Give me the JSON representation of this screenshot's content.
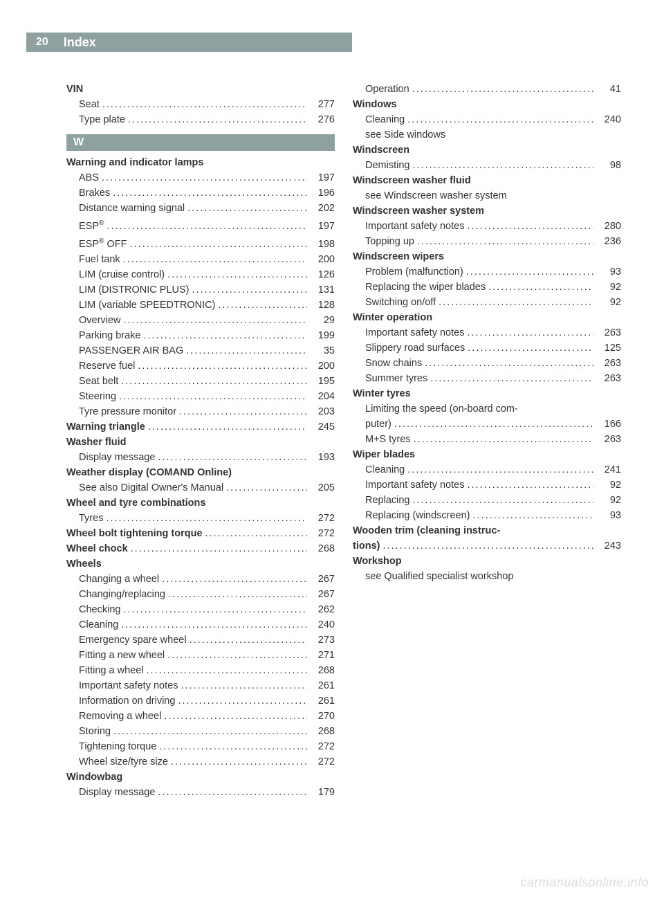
{
  "header": {
    "page_number": "20",
    "title": "Index"
  },
  "watermark": "carmanualsonline.info",
  "section_letter": "W",
  "col1": {
    "vin": {
      "heading": "VIN",
      "seat": {
        "label": "Seat",
        "page": "277"
      },
      "type_plate": {
        "label": "Type plate",
        "page": "276"
      }
    },
    "warning_lamps": {
      "heading": "Warning and indicator lamps",
      "abs": {
        "label": "ABS",
        "page": "197"
      },
      "brakes": {
        "label": "Brakes",
        "page": "196"
      },
      "distance": {
        "label": "Distance warning signal",
        "page": "202"
      },
      "esp": {
        "label": "ESP",
        "page": "197"
      },
      "esp_off": {
        "label": "ESP",
        "suffix": " OFF",
        "page": "198"
      },
      "fuel_tank": {
        "label": "Fuel tank",
        "page": "200"
      },
      "lim_cruise": {
        "label": "LIM (cruise control)",
        "page": "126"
      },
      "lim_distronic": {
        "label": "LIM (DISTRONIC PLUS)",
        "page": "131"
      },
      "lim_speedtronic": {
        "label": "LIM (variable SPEEDTRONIC)",
        "page": "128"
      },
      "overview": {
        "label": "Overview",
        "page": "29"
      },
      "parking_brake": {
        "label": "Parking brake",
        "page": "199"
      },
      "passenger_airbag": {
        "label": "PASSENGER AIR BAG",
        "page": "35"
      },
      "reserve_fuel": {
        "label": "Reserve fuel",
        "page": "200"
      },
      "seat_belt": {
        "label": "Seat belt",
        "page": "195"
      },
      "steering": {
        "label": "Steering",
        "page": "204"
      },
      "tyre_pressure": {
        "label": "Tyre pressure monitor",
        "page": "203"
      }
    },
    "warning_triangle": {
      "label": "Warning triangle",
      "page": "245"
    },
    "washer_fluid": {
      "heading": "Washer fluid",
      "display_message": {
        "label": "Display message",
        "page": "193"
      }
    },
    "weather_display": {
      "heading": "Weather display (COMAND Online)",
      "see_manual": {
        "label": "See also Digital Owner's Manual",
        "page": "205"
      }
    },
    "wheel_tyre_combi": {
      "heading": "Wheel and tyre combinations",
      "tyres": {
        "label": "Tyres",
        "page": "272"
      }
    },
    "wheel_bolt_torque": {
      "label": "Wheel bolt tightening torque",
      "page": "272"
    },
    "wheel_chock": {
      "label": "Wheel chock",
      "page": "268"
    },
    "wheels": {
      "heading": "Wheels",
      "changing_a_wheel": {
        "label": "Changing a wheel",
        "page": "267"
      },
      "changing_replacing": {
        "label": "Changing/replacing",
        "page": "267"
      },
      "checking": {
        "label": "Checking",
        "page": "262"
      },
      "cleaning": {
        "label": "Cleaning",
        "page": "240"
      },
      "emergency_spare": {
        "label": "Emergency spare wheel",
        "page": "273"
      },
      "fitting_new": {
        "label": "Fitting a new wheel",
        "page": "271"
      },
      "fitting_wheel": {
        "label": "Fitting a wheel",
        "page": "268"
      },
      "safety_notes": {
        "label": "Important safety notes",
        "page": "261"
      },
      "info_driving": {
        "label": "Information on driving",
        "page": "261"
      },
      "removing": {
        "label": "Removing a wheel",
        "page": "270"
      },
      "storing": {
        "label": "Storing",
        "page": "268"
      },
      "tightening_torque": {
        "label": "Tightening torque",
        "page": "272"
      },
      "wheel_size": {
        "label": "Wheel size/tyre size",
        "page": "272"
      }
    },
    "windowbag": {
      "heading": "Windowbag",
      "display_message": {
        "label": "Display message",
        "page": "179"
      }
    }
  },
  "col2": {
    "operation": {
      "label": "Operation",
      "page": "41"
    },
    "windows": {
      "heading": "Windows",
      "cleaning": {
        "label": "Cleaning",
        "page": "240"
      },
      "see_side": "see Side windows"
    },
    "windscreen": {
      "heading": "Windscreen",
      "demisting": {
        "label": "Demisting",
        "page": "98"
      }
    },
    "washer_fluid": {
      "heading": "Windscreen washer fluid",
      "see_system": "see Windscreen washer system"
    },
    "washer_system": {
      "heading": "Windscreen washer system",
      "safety_notes": {
        "label": "Important safety notes",
        "page": "280"
      },
      "topping_up": {
        "label": "Topping up",
        "page": "236"
      }
    },
    "wipers": {
      "heading": "Windscreen wipers",
      "problem": {
        "label": "Problem (malfunction)",
        "page": "93"
      },
      "replacing_blades": {
        "label": "Replacing the wiper blades",
        "page": "92"
      },
      "switching": {
        "label": "Switching on/off",
        "page": "92"
      }
    },
    "winter_operation": {
      "heading": "Winter operation",
      "safety_notes": {
        "label": "Important safety notes",
        "page": "263"
      },
      "slippery": {
        "label": "Slippery road surfaces",
        "page": "125"
      },
      "snow_chains": {
        "label": "Snow chains",
        "page": "263"
      },
      "summer_tyres": {
        "label": "Summer tyres",
        "page": "263"
      }
    },
    "winter_tyres": {
      "heading": "Winter tyres",
      "limiting_line1": "Limiting the speed (on-board com-",
      "limiting_line2": {
        "label": "puter)",
        "page": "166"
      },
      "ms_tyres": {
        "label": "M+S tyres",
        "page": "263"
      }
    },
    "wiper_blades": {
      "heading": "Wiper blades",
      "cleaning": {
        "label": "Cleaning",
        "page": "241"
      },
      "safety_notes": {
        "label": "Important safety notes",
        "page": "92"
      },
      "replacing": {
        "label": "Replacing",
        "page": "92"
      },
      "replacing_windscreen": {
        "label": "Replacing (windscreen)",
        "page": "93"
      }
    },
    "wooden_trim": {
      "line1": "Wooden trim (cleaning instruc-",
      "line2": {
        "label": "tions)",
        "page": "243"
      }
    },
    "workshop": {
      "heading": "Workshop",
      "see_qualified": "see Qualified specialist workshop"
    }
  }
}
